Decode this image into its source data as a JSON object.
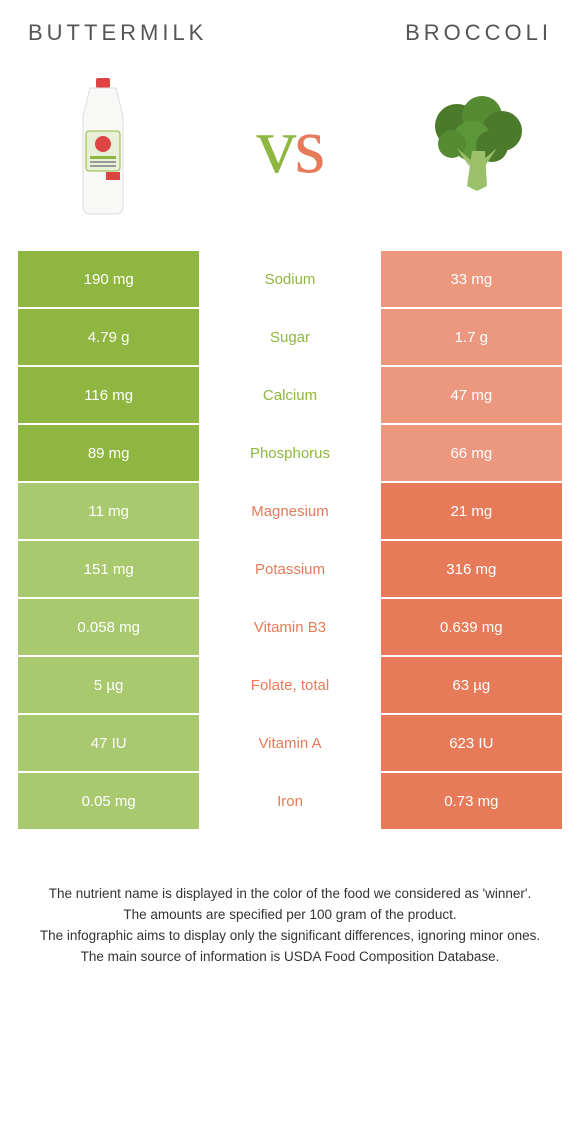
{
  "left": {
    "title": "Buttermilk",
    "color_win": "#8fb640",
    "color_lose": "#a9c96e"
  },
  "right": {
    "title": "Broccoli",
    "color_win": "#e67a59",
    "color_lose": "#ec987f"
  },
  "vs": {
    "v": "v",
    "s": "s"
  },
  "rows": [
    {
      "label": "Sodium",
      "left": "190 mg",
      "right": "33 mg",
      "winner": "left"
    },
    {
      "label": "Sugar",
      "left": "4.79 g",
      "right": "1.7 g",
      "winner": "left"
    },
    {
      "label": "Calcium",
      "left": "116 mg",
      "right": "47 mg",
      "winner": "left"
    },
    {
      "label": "Phosphorus",
      "left": "89 mg",
      "right": "66 mg",
      "winner": "left"
    },
    {
      "label": "Magnesium",
      "left": "11 mg",
      "right": "21 mg",
      "winner": "right"
    },
    {
      "label": "Potassium",
      "left": "151 mg",
      "right": "316 mg",
      "winner": "right"
    },
    {
      "label": "Vitamin B3",
      "left": "0.058 mg",
      "right": "0.639 mg",
      "winner": "right"
    },
    {
      "label": "Folate, total",
      "left": "5 µg",
      "right": "63 µg",
      "winner": "right"
    },
    {
      "label": "Vitamin A",
      "left": "47 IU",
      "right": "623 IU",
      "winner": "right"
    },
    {
      "label": "Iron",
      "left": "0.05 mg",
      "right": "0.73 mg",
      "winner": "right"
    }
  ],
  "footer": {
    "l1": "The nutrient name is displayed in the color of the food we considered as 'winner'.",
    "l2": "The amounts are specified per 100 gram of the product.",
    "l3": "The infographic aims to display only the significant differences, ignoring minor ones.",
    "l4": "The main source of information is USDA Food Composition Database."
  }
}
